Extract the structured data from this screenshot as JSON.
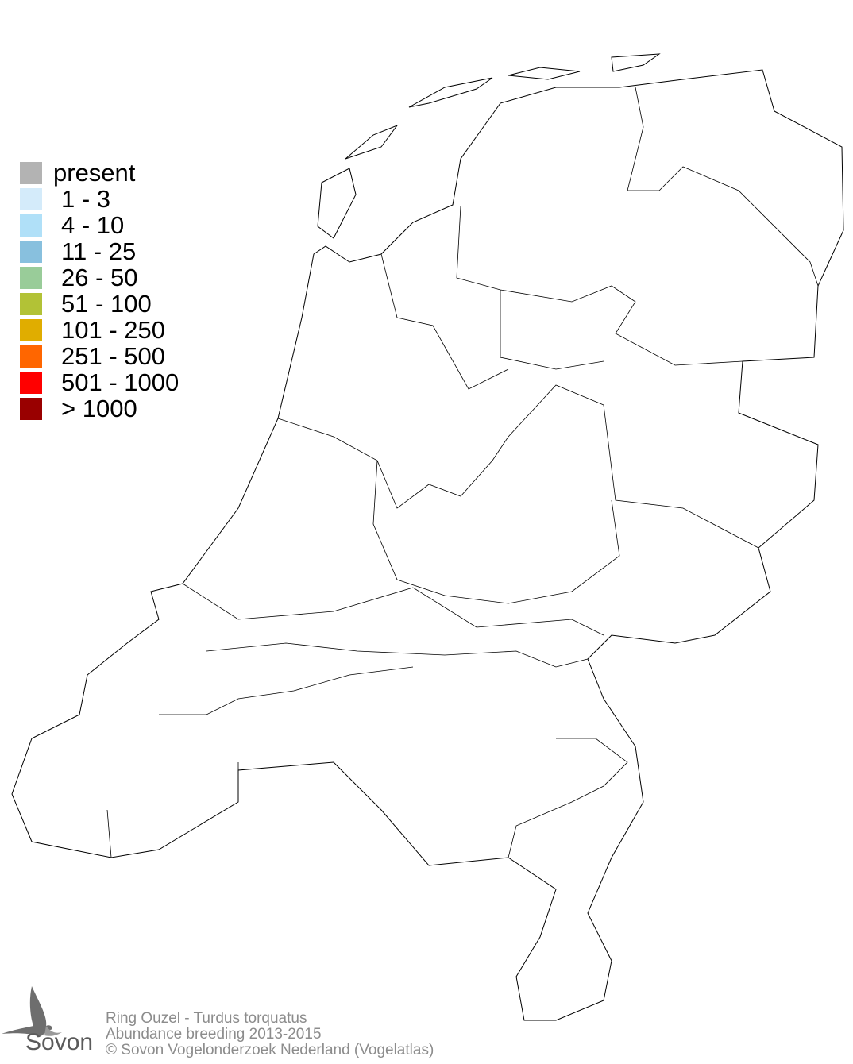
{
  "legend": {
    "items": [
      {
        "label": "present",
        "color": "#b3b3b3"
      },
      {
        "label": "1 - 3",
        "color": "#d4ebfa"
      },
      {
        "label": "4 - 10",
        "color": "#b0e0f8"
      },
      {
        "label": "11 - 25",
        "color": "#88c0de"
      },
      {
        "label": "26 - 50",
        "color": "#99cc99"
      },
      {
        "label": "51 - 100",
        "color": "#b2c236"
      },
      {
        "label": "101 - 250",
        "color": "#e0ad00"
      },
      {
        "label": "251 - 500",
        "color": "#ff6600"
      },
      {
        "label": "501 - 1000",
        "color": "#ff0000"
      },
      {
        "label": "> 1000",
        "color": "#990000"
      }
    ]
  },
  "footer": {
    "species": "Ring Ouzel - Turdus torquatus",
    "subtitle": "Abundance breeding 2013-2015",
    "copyright": "© Sovon Vogelonderzoek Nederland (Vogelatlas)"
  },
  "logo": {
    "text": "Sovon",
    "icon": "swallow-icon"
  }
}
